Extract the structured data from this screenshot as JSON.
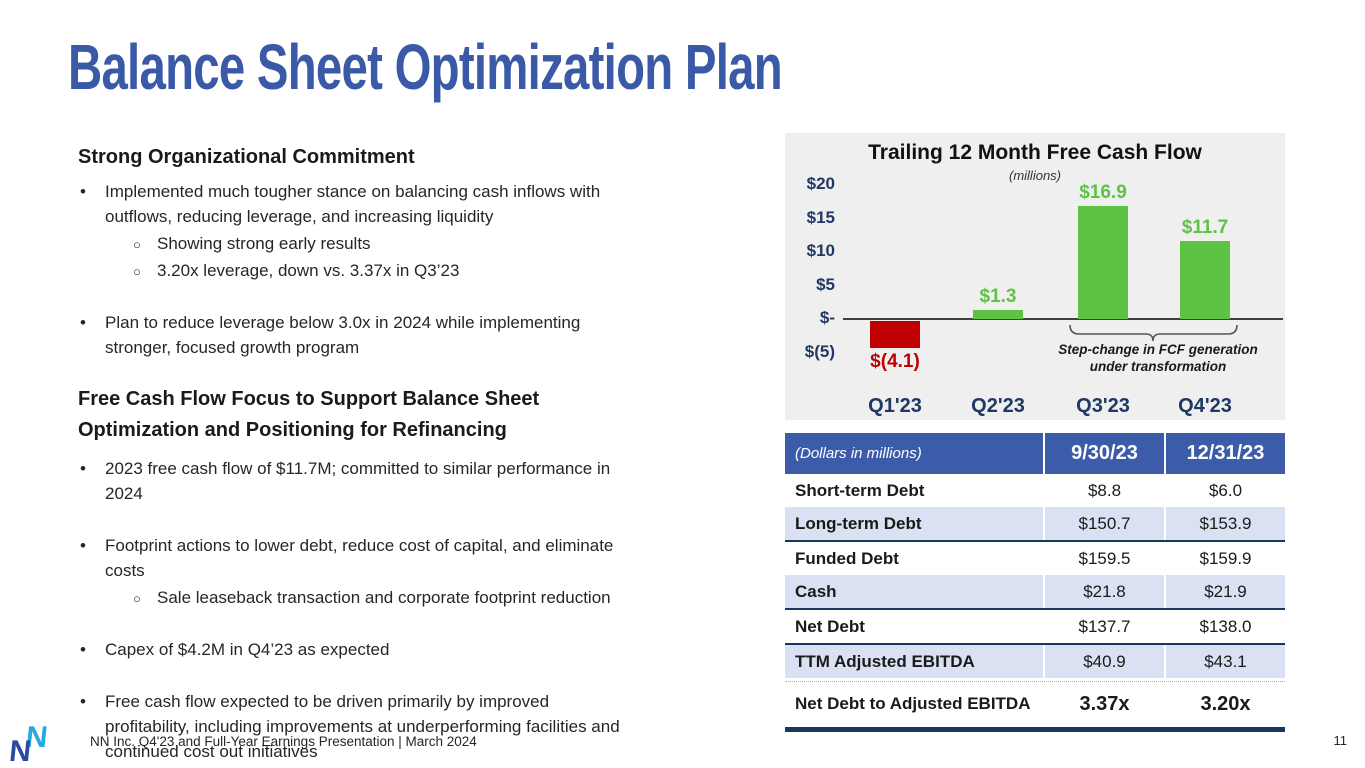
{
  "slide": {
    "title": "Balance Sheet Optimization Plan",
    "footer": "NN Inc. Q4'23 and Full-Year Earnings Presentation | March 2024",
    "page_number": "11"
  },
  "left": {
    "section1": {
      "heading": "Strong Organizational Commitment",
      "items": [
        {
          "level": 1,
          "gap": false,
          "text": "Implemented much tougher stance on balancing cash inflows with\noutflows, reducing leverage, and increasing liquidity"
        },
        {
          "level": 2,
          "gap": false,
          "text": "Showing strong early results"
        },
        {
          "level": 2,
          "gap": false,
          "text": "3.20x leverage, down vs. 3.37x in Q3’23"
        },
        {
          "level": 1,
          "gap": true,
          "text": "Plan to reduce leverage below 3.0x in 2024 while implementing\nstronger, focused growth program"
        }
      ]
    },
    "section2": {
      "heading": "Free Cash Flow Focus to Support Balance Sheet\nOptimization and Positioning for Refinancing",
      "items": [
        {
          "level": 1,
          "gap": false,
          "text": "2023 free cash flow of $11.7M; committed to similar performance in\n2024"
        },
        {
          "level": 1,
          "gap": true,
          "text": "Footprint actions to lower debt, reduce cost of capital, and eliminate\ncosts"
        },
        {
          "level": 2,
          "gap": false,
          "text": "Sale leaseback transaction and corporate footprint reduction"
        },
        {
          "level": 1,
          "gap": true,
          "text": "Capex of $4.2M in Q4’23 as expected"
        },
        {
          "level": 1,
          "gap": true,
          "text": "Free cash flow expected to be driven primarily by improved\nprofitability, including improvements at underperforming facilities and\ncontinued cost out initiatives"
        }
      ]
    }
  },
  "chart_data": {
    "type": "bar",
    "title": "Trailing 12 Month Free Cash Flow",
    "subtitle": "(millions)",
    "categories": [
      "Q1'23",
      "Q2'23",
      "Q3'23",
      "Q4'23"
    ],
    "values": [
      -4.1,
      1.3,
      16.9,
      11.7
    ],
    "bar_labels": [
      "$(4.1)",
      "$1.3",
      "$16.9",
      "$11.7"
    ],
    "yticks": [
      {
        "label": "$20",
        "value": 20
      },
      {
        "label": "$15",
        "value": 15
      },
      {
        "label": "$10",
        "value": 10
      },
      {
        "label": "$5",
        "value": 5
      },
      {
        "label": "$-",
        "value": 0
      },
      {
        "label": "$(5)",
        "value": -5
      }
    ],
    "ylim": [
      -7.5,
      22
    ],
    "grid": false,
    "legend": false,
    "positive_color": "#5ec343",
    "negative_color": "#c00000",
    "annotation": "Step-change in FCF generation\nunder transformation"
  },
  "table": {
    "header": {
      "label": "(Dollars in millions)",
      "col1": "9/30/23",
      "col2": "12/31/23"
    },
    "rows": [
      {
        "label": "Short-term Debt",
        "v1": "$8.8",
        "v2": "$6.0",
        "shade": false,
        "sumline": false,
        "big": false
      },
      {
        "label": "Long-term Debt",
        "v1": "$150.7",
        "v2": "$153.9",
        "shade": true,
        "sumline": false,
        "big": false
      },
      {
        "label": "Funded Debt",
        "v1": "$159.5",
        "v2": "$159.9",
        "shade": false,
        "sumline": true,
        "big": false
      },
      {
        "label": "Cash",
        "v1": "$21.8",
        "v2": "$21.9",
        "shade": true,
        "sumline": false,
        "big": false
      },
      {
        "label": "Net Debt",
        "v1": "$137.7",
        "v2": "$138.0",
        "shade": false,
        "sumline": true,
        "big": false
      },
      {
        "label": "TTM Adjusted EBITDA",
        "v1": "$40.9",
        "v2": "$43.1",
        "shade": true,
        "sumline": true,
        "big": false
      },
      {
        "label": "Net Debt to Adjusted EBITDA",
        "v1": "3.37x",
        "v2": "3.20x",
        "shade": false,
        "sumline": false,
        "big": true
      }
    ]
  },
  "colors": {
    "title_blue": "#3a5aa8",
    "table_header_blue": "#3c5caa",
    "row_alt_blue": "#d9e1f2",
    "navy": "#1f3864",
    "dark_line": "#17375e",
    "bar_green": "#5ec343",
    "bar_red": "#c00000",
    "panel_bg": "#f0efef"
  }
}
